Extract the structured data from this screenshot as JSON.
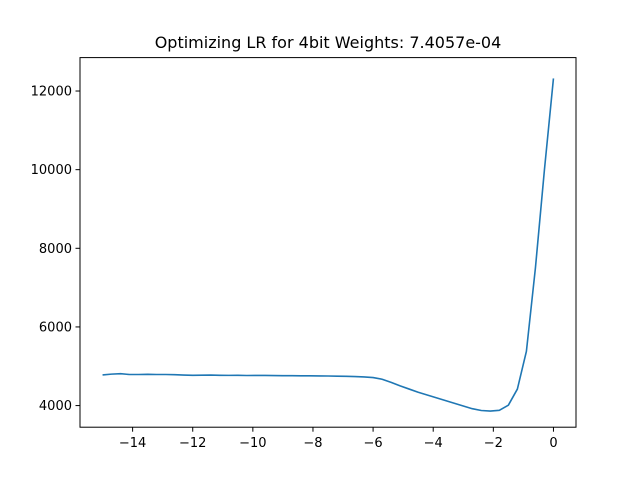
{
  "chart_data": {
    "type": "line",
    "title": "Optimizing LR for 4bit Weights: 7.4057e-04",
    "xlabel": "",
    "ylabel": "",
    "xlim": [
      -15.75,
      0.75
    ],
    "ylim": [
      3450,
      12850
    ],
    "xticks": [
      -14,
      -12,
      -10,
      -8,
      -6,
      -4,
      -2,
      0
    ],
    "yticks": [
      4000,
      6000,
      8000,
      10000,
      12000
    ],
    "xtick_labels": [
      "−14",
      "−12",
      "−10",
      "−8",
      "−6",
      "−4",
      "−2",
      "0"
    ],
    "ytick_labels": [
      "4000",
      "6000",
      "8000",
      "10000",
      "12000"
    ],
    "grid": false,
    "colors": {
      "line": "#1f77b4",
      "axes": "#000000"
    },
    "series": [
      {
        "x": [
          -15.0,
          -14.7,
          -14.4,
          -14.1,
          -13.8,
          -13.5,
          -13.2,
          -12.9,
          -12.6,
          -12.3,
          -12.0,
          -11.7,
          -11.4,
          -11.1,
          -10.8,
          -10.5,
          -10.2,
          -9.9,
          -9.6,
          -9.3,
          -9.0,
          -8.7,
          -8.4,
          -8.1,
          -7.8,
          -7.5,
          -7.2,
          -6.9,
          -6.6,
          -6.3,
          -6.0,
          -5.7,
          -5.4,
          -5.1,
          -4.8,
          -4.5,
          -4.2,
          -3.9,
          -3.6,
          -3.3,
          -3.0,
          -2.7,
          -2.4,
          -2.1,
          -1.8,
          -1.5,
          -1.2,
          -0.9,
          -0.6,
          -0.3,
          0.0
        ],
        "values": [
          4780,
          4800,
          4810,
          4790,
          4790,
          4795,
          4790,
          4790,
          4785,
          4775,
          4770,
          4772,
          4775,
          4770,
          4768,
          4770,
          4765,
          4766,
          4767,
          4763,
          4760,
          4760,
          4758,
          4757,
          4755,
          4752,
          4748,
          4744,
          4738,
          4728,
          4712,
          4670,
          4590,
          4500,
          4420,
          4340,
          4270,
          4200,
          4130,
          4060,
          3990,
          3920,
          3875,
          3860,
          3880,
          4010,
          4420,
          5380,
          7500,
          10000,
          12320
        ]
      }
    ]
  }
}
